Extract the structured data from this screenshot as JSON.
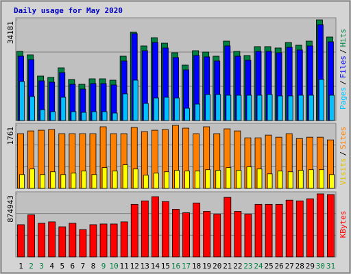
{
  "title": "Daily usage for May 2020",
  "legend_separator": "/",
  "chart_data": [
    {
      "type": "bar",
      "ylim": [
        0,
        34181
      ],
      "yticks": [
        34181
      ],
      "series": [
        {
          "name": "Hits",
          "color": "#008040",
          "values": [
            23485,
            22322,
            15114,
            14649,
            17904,
            13951,
            12324,
            14184,
            14184,
            13719,
            21857,
            29996,
            25345,
            28135,
            26275,
            23020,
            18834,
            23717,
            23252,
            21857,
            26973,
            23485,
            22090,
            25113,
            25113,
            24648,
            26508,
            25578,
            26973,
            34181,
            28368
          ]
        },
        {
          "name": "Files",
          "color": "#0000ff",
          "values": [
            21857,
            20694,
            13486,
            13021,
            16276,
            12323,
            10696,
            12556,
            12556,
            12091,
            20229,
            29531,
            23717,
            26507,
            24647,
            21392,
            17206,
            22089,
            21624,
            20229,
            25345,
            21857,
            20462,
            23485,
            23485,
            23020,
            24880,
            23950,
            25345,
            32553,
            26740
          ]
        },
        {
          "name": "Pages",
          "color": "#00c0ff",
          "values": [
            13254,
            8138,
            3720,
            3023,
            7906,
            3023,
            2790,
            3023,
            3023,
            2558,
            9068,
            13719,
            5813,
            7673,
            7906,
            7673,
            4185,
            5581,
            8836,
            8836,
            8603,
            8603,
            8603,
            8603,
            8836,
            8371,
            8371,
            8603,
            8603,
            13951,
            8603
          ]
        }
      ]
    },
    {
      "type": "bar",
      "ylim": [
        0,
        1761
      ],
      "yticks": [
        1761
      ],
      "series": [
        {
          "name": "Sites",
          "color": "#ff8000",
          "values": [
            1529,
            1606,
            1626,
            1645,
            1529,
            1529,
            1529,
            1529,
            1722,
            1529,
            1529,
            1703,
            1587,
            1626,
            1645,
            1761,
            1684,
            1529,
            1722,
            1529,
            1664,
            1606,
            1413,
            1413,
            1490,
            1432,
            1529,
            1393,
            1432,
            1432,
            1355
          ]
        },
        {
          "name": "Visits",
          "color": "#ffff00",
          "values": [
            387,
            542,
            387,
            464,
            387,
            426,
            484,
            387,
            581,
            484,
            658,
            542,
            368,
            426,
            464,
            503,
            484,
            484,
            522,
            503,
            581,
            503,
            600,
            542,
            406,
            484,
            464,
            503,
            522,
            522,
            387
          ]
        }
      ]
    },
    {
      "type": "bar",
      "ylim": [
        0,
        874943
      ],
      "yticks": [
        874943
      ],
      "categories": [
        "1",
        "2",
        "3",
        "4",
        "5",
        "6",
        "7",
        "8",
        "9",
        "10",
        "11",
        "12",
        "13",
        "14",
        "15",
        "16",
        "17",
        "18",
        "19",
        "20",
        "21",
        "22",
        "23",
        "24",
        "25",
        "26",
        "27",
        "28",
        "29",
        "30",
        "31"
      ],
      "category_colors": [
        "#000000",
        "#008040",
        "#008040",
        "#000000",
        "#000000",
        "#000000",
        "#000000",
        "#000000",
        "#008040",
        "#008040",
        "#000000",
        "#000000",
        "#000000",
        "#000000",
        "#000000",
        "#008040",
        "#008040",
        "#000000",
        "#000000",
        "#000000",
        "#000000",
        "#000000",
        "#008040",
        "#008040",
        "#000000",
        "#000000",
        "#000000",
        "#000000",
        "#000000",
        "#008040",
        "#008040"
      ],
      "series": [
        {
          "name": "KBytes",
          "color": "#ff0000",
          "values": [
            447193,
            583295,
            466636,
            486080,
            418029,
            466636,
            379142,
            447193,
            456914,
            456914,
            486080,
            729119,
            777727,
            836057,
            768005,
            661068,
            612460,
            748562,
            631903,
            593016,
            826335,
            631903,
            593016,
            729119,
            729119,
            729119,
            787449,
            777727,
            806892,
            874943,
            865221
          ]
        }
      ]
    }
  ]
}
